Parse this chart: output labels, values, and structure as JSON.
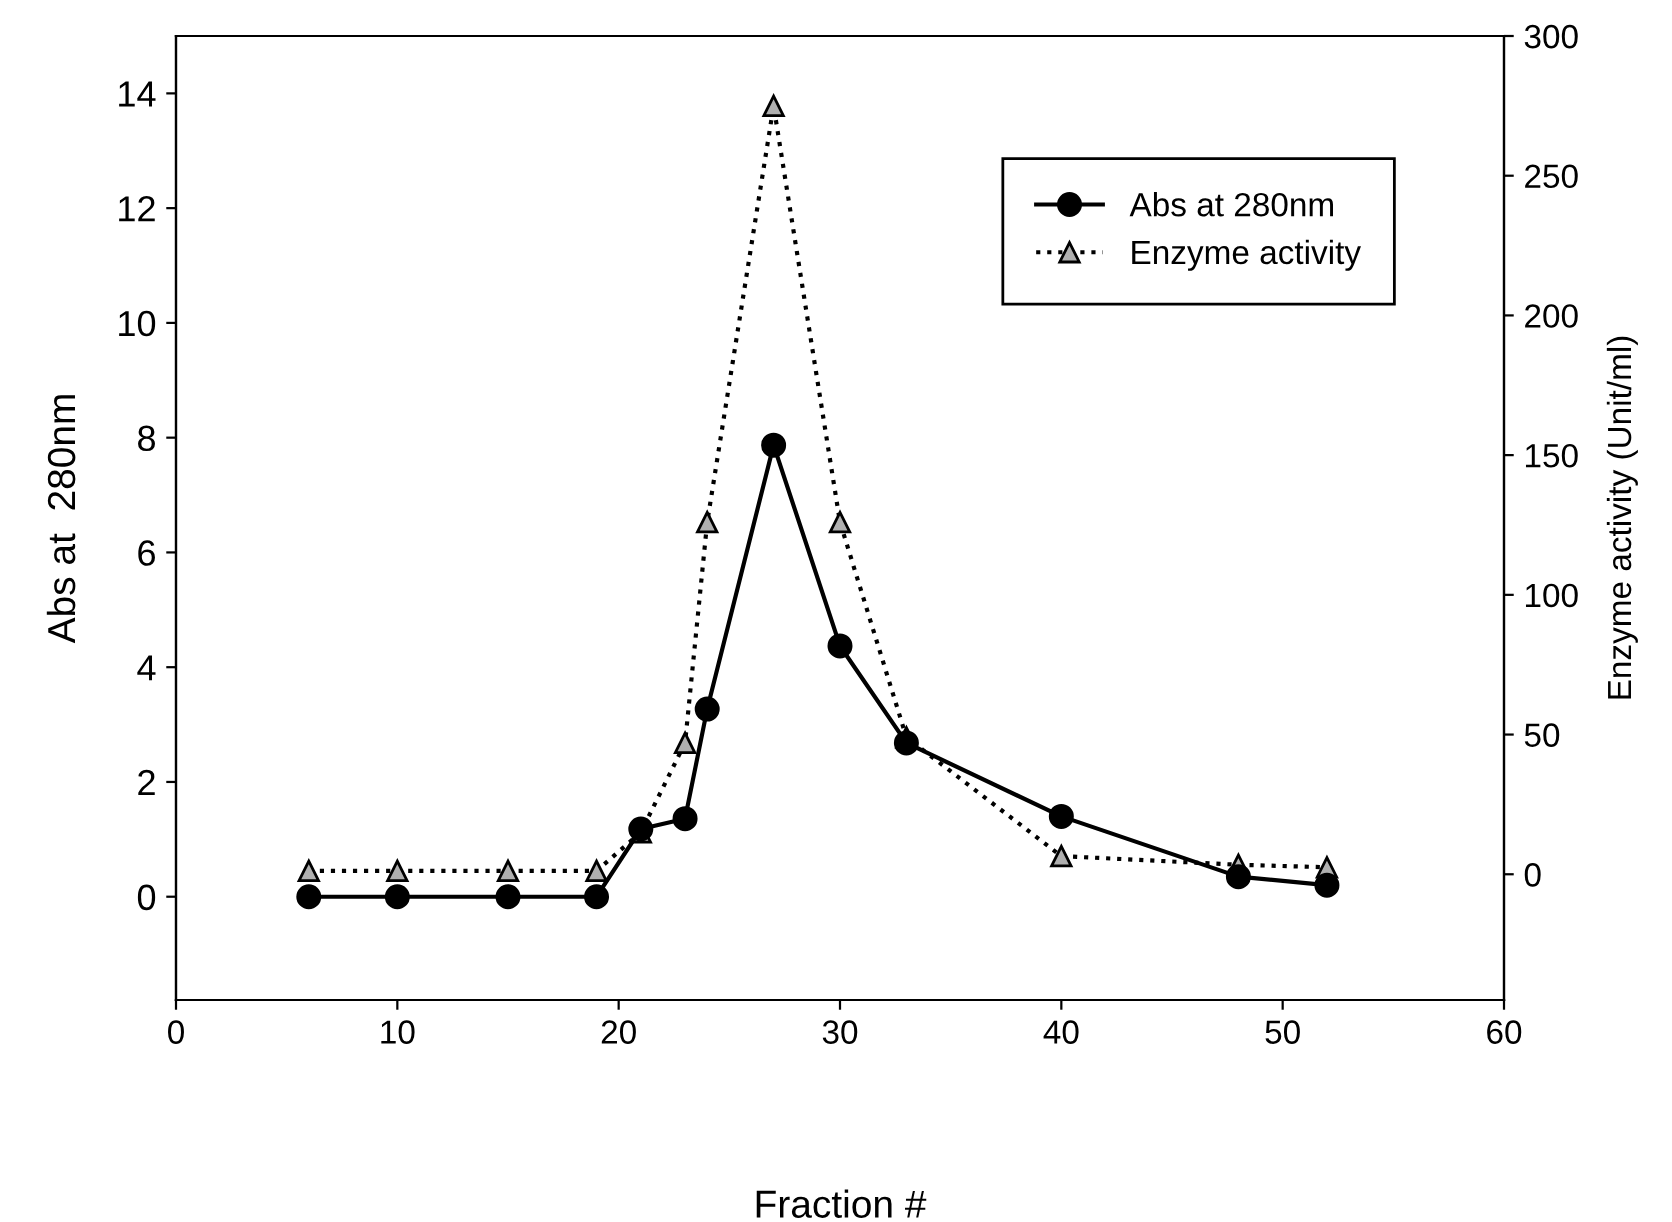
{
  "chart_data": {
    "type": "line",
    "xlabel": "Fraction #",
    "ylabel": "Abs at  280nm",
    "y2label": "Enzyme activity (Unit/ml)",
    "x": [
      6,
      10,
      15,
      19,
      21,
      23,
      24,
      27,
      30,
      33,
      40,
      48,
      52
    ],
    "series": [
      {
        "name": "Abs at 280nm",
        "color": "#000000",
        "marker": "circle",
        "line_style": "solid",
        "values": [
          0,
          0,
          0,
          0,
          1.18,
          1.36,
          3.27,
          7.87,
          4.37,
          2.68,
          1.4,
          0.35,
          0.2
        ]
      },
      {
        "name": "Enzyme activity",
        "color": "#000000",
        "marker": "triangle",
        "line_style": "dotted",
        "axis": "y2",
        "values": [
          1.2,
          1.2,
          1.2,
          1.2,
          15,
          47,
          126,
          275,
          126,
          49,
          6.5,
          3.4,
          2.5
        ]
      }
    ],
    "xlim": [
      0,
      60
    ],
    "xticks": [
      0,
      10,
      20,
      30,
      40,
      50,
      60
    ],
    "ylim": [
      -1.8,
      15
    ],
    "yticks": [
      0,
      2,
      4,
      6,
      8,
      10,
      12,
      14
    ],
    "y2lim": [
      -45,
      300
    ],
    "y2ticks": [
      0,
      50,
      100,
      150,
      200,
      250,
      300
    ],
    "grid": false,
    "legend": "top right"
  }
}
